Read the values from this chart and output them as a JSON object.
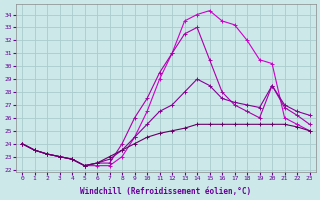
{
  "xlabel": "Windchill (Refroidissement éolien,°C)",
  "bg_color": "#cce8e8",
  "grid_color": "#aacccc",
  "xlim": [
    -0.5,
    23.5
  ],
  "ylim": [
    21.8,
    34.8
  ],
  "yticks": [
    22,
    23,
    24,
    25,
    26,
    27,
    28,
    29,
    30,
    31,
    32,
    33,
    34
  ],
  "xticks": [
    0,
    1,
    2,
    3,
    4,
    5,
    6,
    7,
    8,
    9,
    10,
    11,
    12,
    13,
    14,
    15,
    16,
    17,
    18,
    19,
    20,
    21,
    22,
    23
  ],
  "series": [
    [
      24.0,
      23.5,
      23.2,
      23.0,
      22.8,
      22.3,
      22.3,
      22.3,
      23.0,
      24.5,
      26.5,
      29.0,
      31.0,
      33.5,
      34.0,
      34.3,
      33.5,
      33.2,
      32.0,
      30.5,
      30.2,
      26.0,
      25.5,
      25.0
    ],
    [
      24.0,
      23.5,
      23.2,
      23.0,
      22.8,
      22.3,
      22.5,
      22.5,
      24.0,
      26.0,
      27.5,
      29.5,
      31.0,
      32.5,
      33.0,
      30.5,
      28.0,
      27.0,
      26.5,
      26.0,
      28.5,
      26.8,
      26.2,
      25.5
    ],
    [
      24.0,
      23.5,
      23.2,
      23.0,
      22.8,
      22.3,
      22.5,
      22.8,
      23.5,
      24.5,
      25.5,
      26.5,
      27.0,
      28.0,
      29.0,
      28.5,
      27.5,
      27.2,
      27.0,
      26.8,
      28.5,
      27.0,
      26.5,
      26.2
    ],
    [
      24.0,
      23.5,
      23.2,
      23.0,
      22.8,
      22.3,
      22.5,
      23.0,
      23.5,
      24.0,
      24.5,
      24.8,
      25.0,
      25.2,
      25.5,
      25.5,
      25.5,
      25.5,
      25.5,
      25.5,
      25.5,
      25.5,
      25.3,
      25.0
    ]
  ],
  "line_colors": [
    "#cc00cc",
    "#aa00aa",
    "#880099",
    "#660066"
  ],
  "marker": "+"
}
